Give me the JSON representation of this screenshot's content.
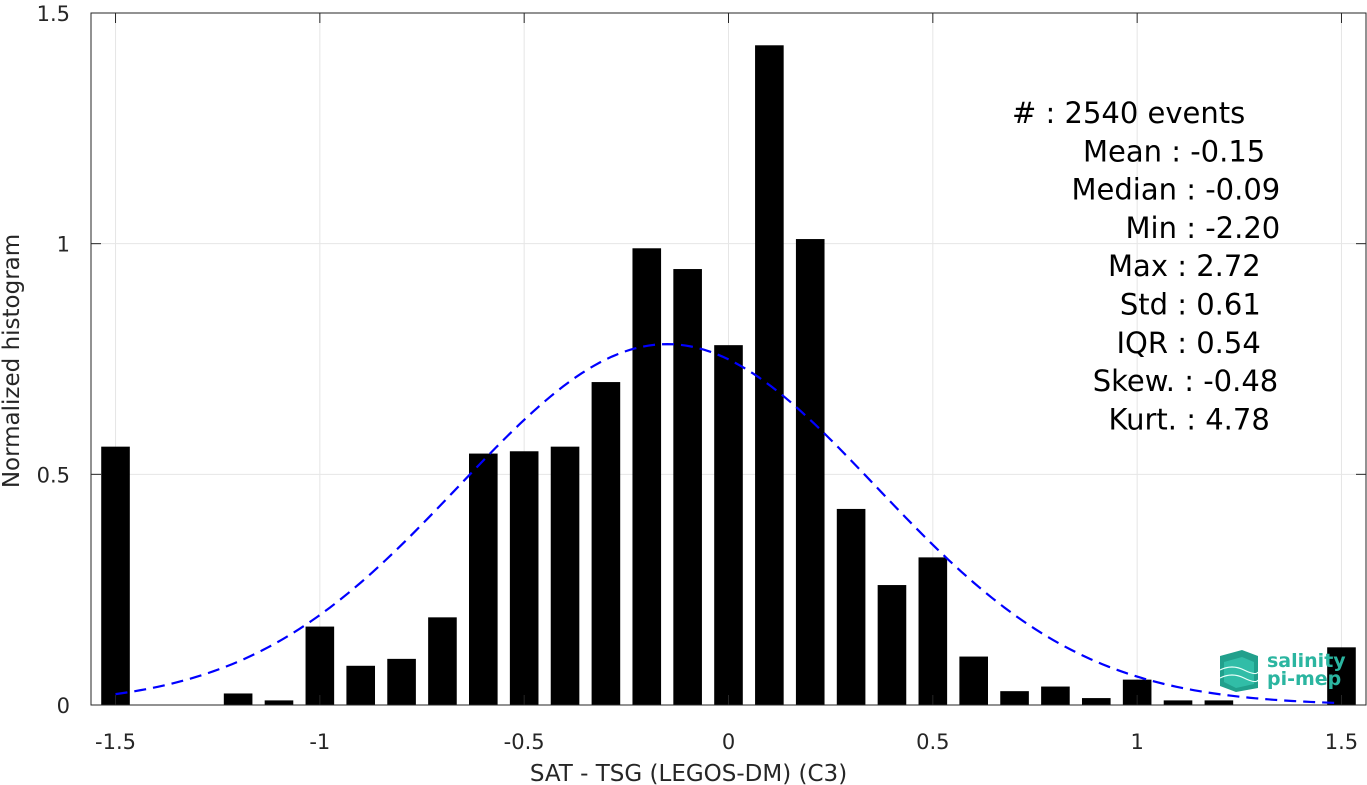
{
  "chart_data": {
    "type": "bar",
    "xlabel": "SAT - TSG (LEGOS-DM) (C3)",
    "ylabel": "Normalized histogram",
    "xlim": [
      -1.56,
      1.56
    ],
    "ylim": [
      0,
      1.5
    ],
    "xticks": [
      -1.5,
      -1,
      -0.5,
      0,
      0.5,
      1,
      1.5
    ],
    "xtick_labels": [
      "-1.5",
      "-1",
      "-0.5",
      "0",
      "0.5",
      "1",
      "1.5"
    ],
    "yticks": [
      0,
      0.5,
      1,
      1.5
    ],
    "ytick_labels": [
      "0",
      "0.5",
      "1",
      "1.5"
    ],
    "grid": true,
    "bar_width": 0.07,
    "bar_color": "#000000",
    "fit_color": "#0000ff",
    "x": [
      -1.5,
      -1.2,
      -1.1,
      -1.0,
      -0.9,
      -0.8,
      -0.7,
      -0.6,
      -0.5,
      -0.4,
      -0.3,
      -0.2,
      -0.1,
      0.0,
      0.1,
      0.2,
      0.3,
      0.4,
      0.5,
      0.6,
      0.7,
      0.8,
      0.9,
      1.0,
      1.1,
      1.2,
      1.5
    ],
    "values": [
      0.56,
      0.025,
      0.01,
      0.17,
      0.085,
      0.1,
      0.19,
      0.545,
      0.55,
      0.56,
      0.7,
      0.99,
      0.945,
      0.78,
      1.43,
      1.01,
      0.425,
      0.26,
      0.32,
      0.105,
      0.03,
      0.04,
      0.015,
      0.055,
      0.01,
      0.01,
      0.125
    ],
    "fit": {
      "type": "normal",
      "mean": -0.15,
      "std": 0.51,
      "style": "dashed",
      "x_range": [
        -1.5,
        1.5
      ]
    },
    "stats": [
      {
        "label": "#  : 2540 events"
      },
      {
        "label": "Mean : -0.15"
      },
      {
        "label": "Median : -0.09"
      },
      {
        "label": "Min : -2.20"
      },
      {
        "label": "Max : 2.72"
      },
      {
        "label": "Std : 0.61"
      },
      {
        "label": "IQR : 0.54"
      },
      {
        "label": "Skew. : -0.48"
      },
      {
        "label": "Kurt. : 4.78"
      }
    ]
  },
  "logo": {
    "line1": "salinity",
    "line2": "pi-mep"
  }
}
